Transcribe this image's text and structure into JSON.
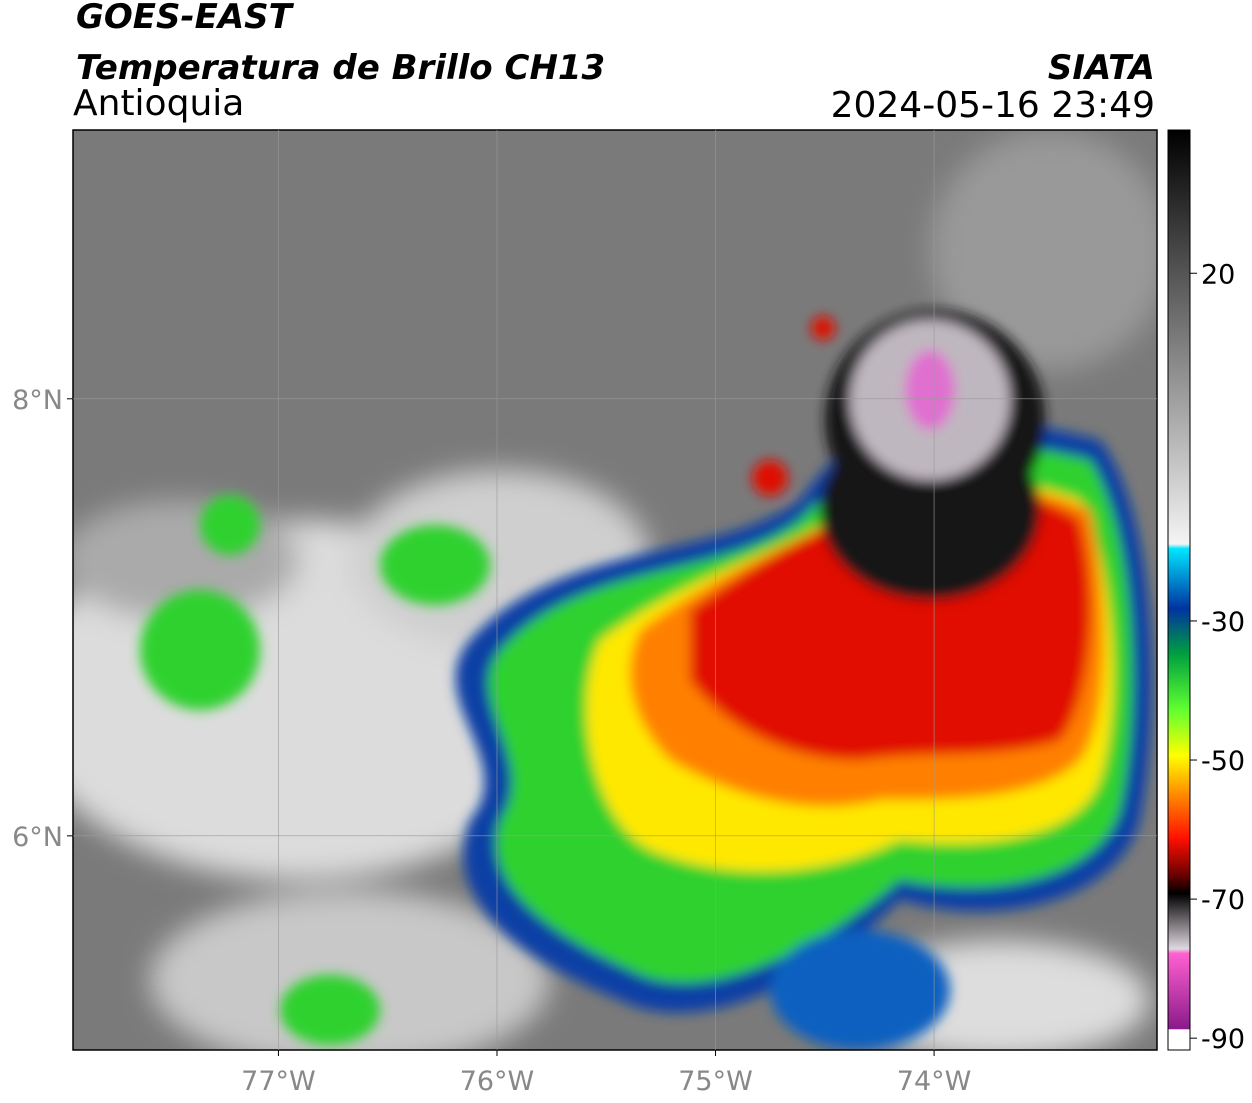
{
  "header": {
    "title": "GOES-EAST",
    "subtitle": "Temperatura de Brillo CH13",
    "region": "Antioquia",
    "source": "SIATA",
    "datetime": "2024-05-16 23:49"
  },
  "map": {
    "xlim": [
      -77.94,
      -72.98
    ],
    "ylim": [
      5.02,
      9.23
    ],
    "xticks": [
      {
        "value": -77,
        "label": "77°W"
      },
      {
        "value": -76,
        "label": "76°W"
      },
      {
        "value": -75,
        "label": "75°W"
      },
      {
        "value": -74,
        "label": "74°W"
      }
    ],
    "yticks": [
      {
        "value": 6,
        "label": "6°N"
      },
      {
        "value": 8,
        "label": "8°N"
      }
    ],
    "grid": true
  },
  "colorbar": {
    "clim": [
      -91.7,
      40.6
    ],
    "ticks": [
      20,
      -30,
      -50,
      -70,
      -90
    ]
  }
}
